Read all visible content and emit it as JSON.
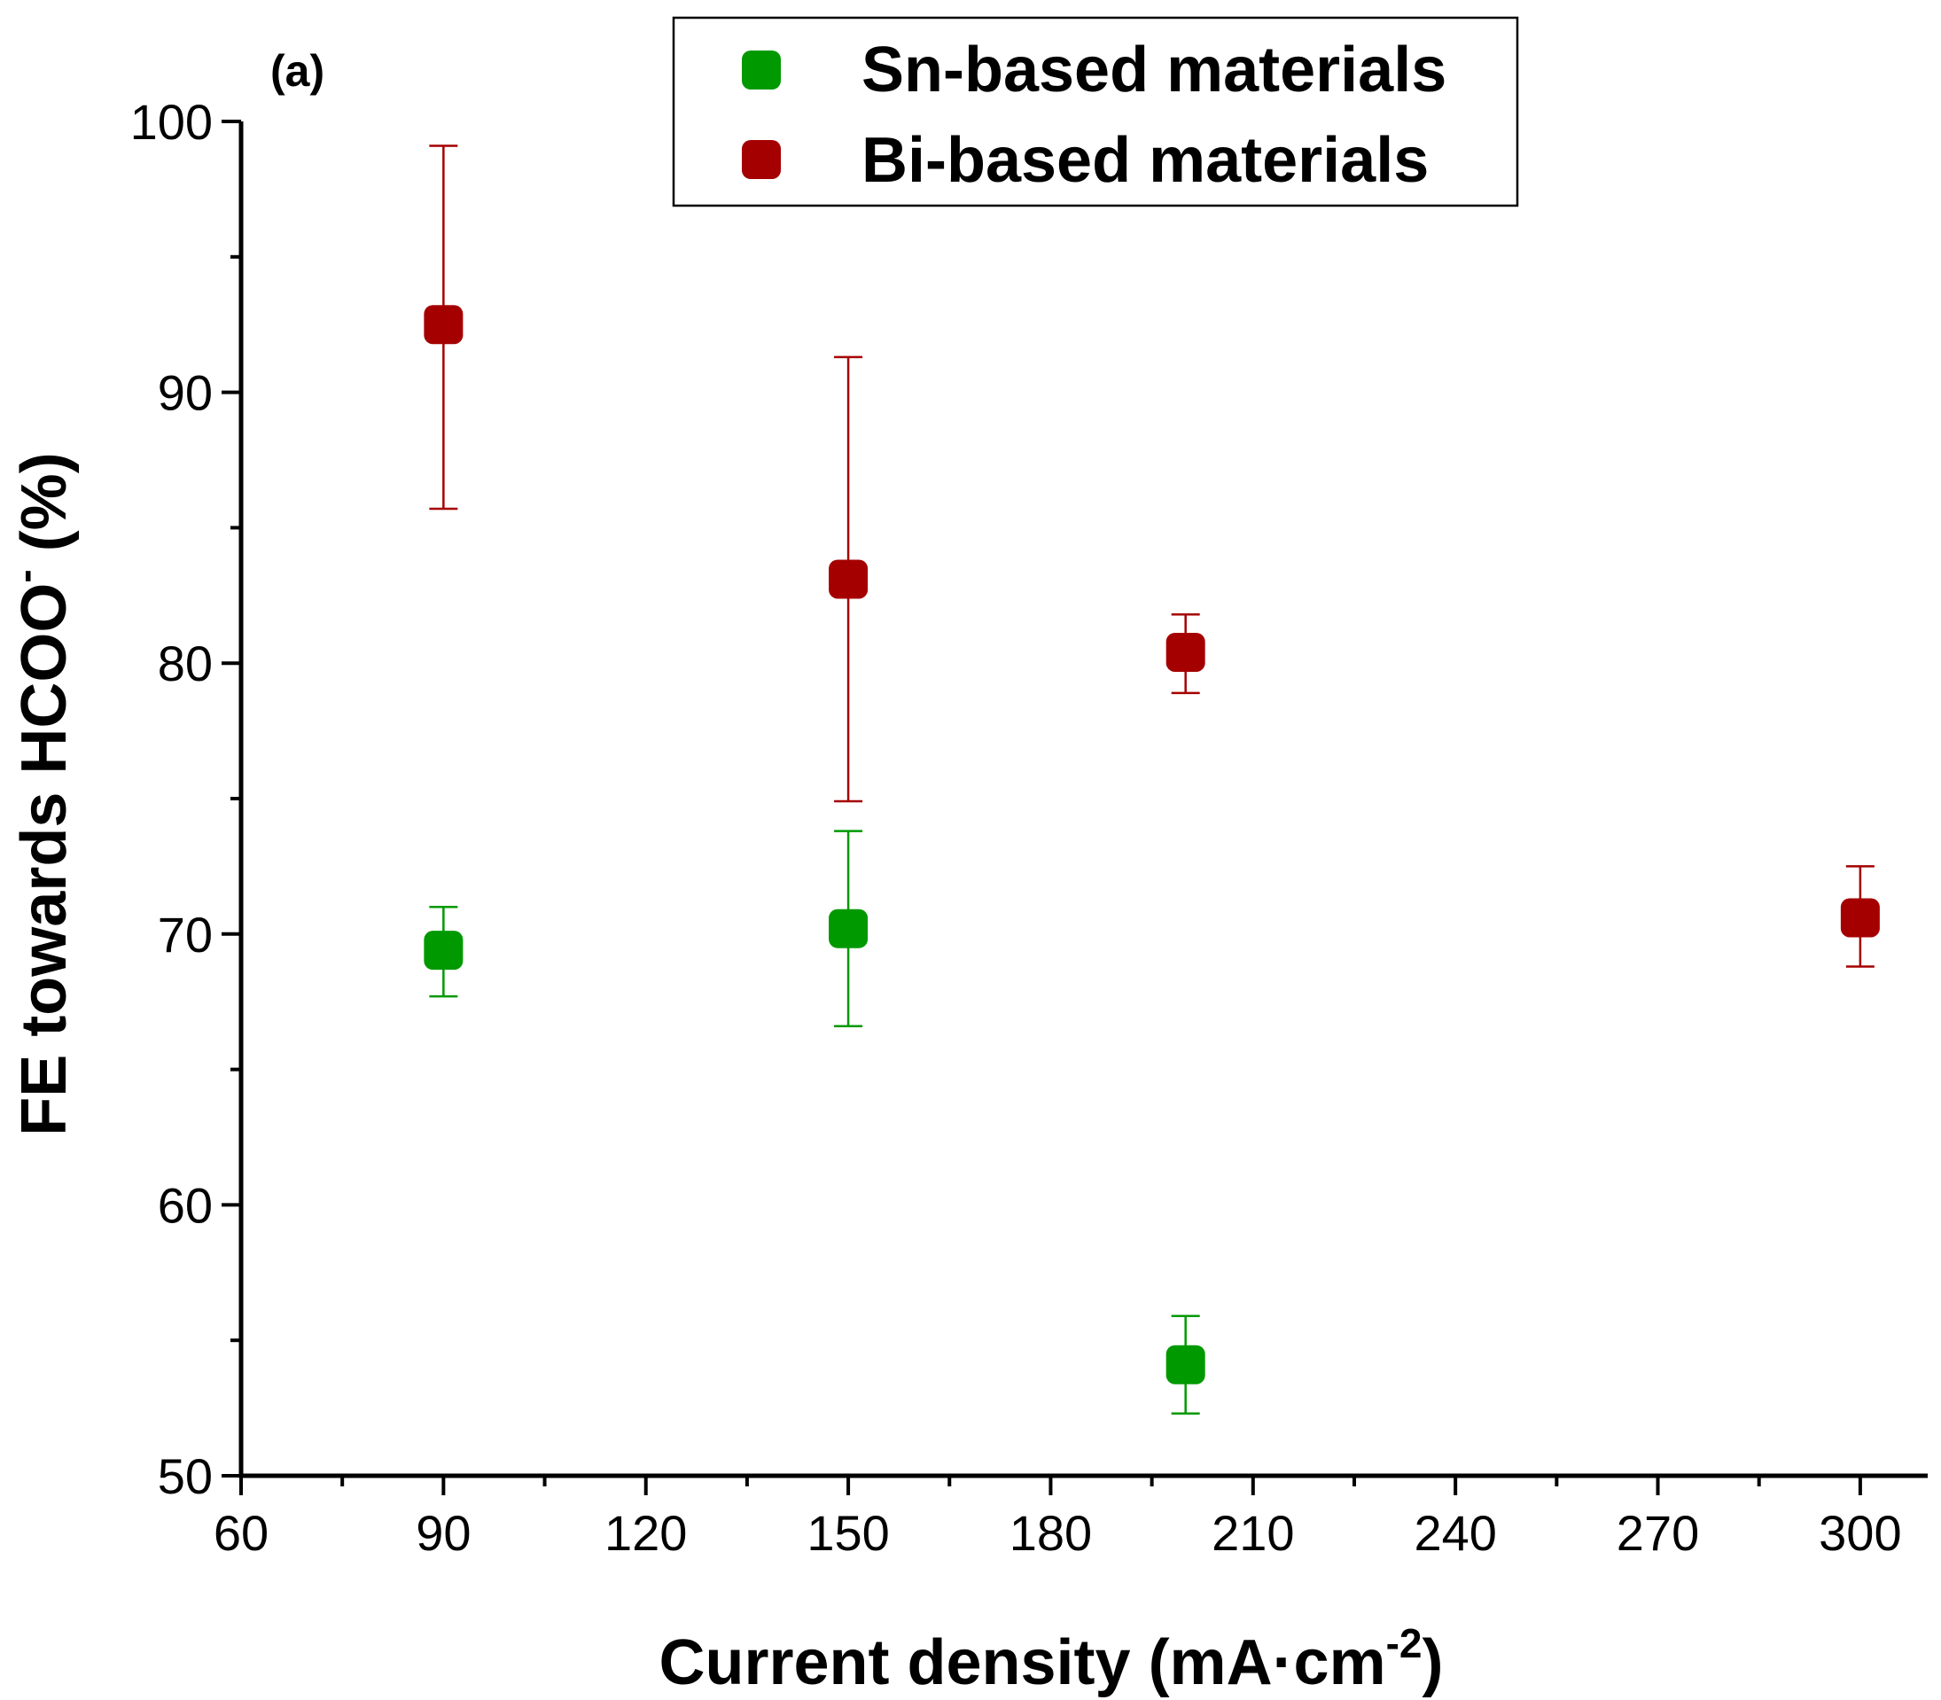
{
  "chart_data": {
    "type": "scatter",
    "panel_label": "(a)",
    "xlabel": "Current density (mA·cm",
    "xlabel_sup": "-2",
    "xlabel_end": ")",
    "ylabel": "FE towards HCOO",
    "ylabel_sup": "-",
    "ylabel_end": " (%)",
    "xlim": [
      60,
      310
    ],
    "ylim": [
      50,
      100
    ],
    "x_ticks": [
      60,
      90,
      120,
      150,
      180,
      210,
      240,
      270,
      300
    ],
    "x_tick_labels": [
      "60",
      "90",
      "120",
      "150",
      "180",
      "210",
      "240",
      "270",
      "300"
    ],
    "x_minor_ticks": [
      75,
      105,
      135,
      165,
      195,
      225,
      255,
      285
    ],
    "y_ticks": [
      50,
      60,
      70,
      80,
      90,
      100
    ],
    "y_tick_labels": [
      "50",
      "60",
      "70",
      "80",
      "90",
      "100"
    ],
    "y_minor_ticks": [
      55,
      65,
      75,
      85,
      95
    ],
    "legend_position": "top-center",
    "series": [
      {
        "name": "Sn-based materials",
        "color": "#009900",
        "points": [
          {
            "x": 90,
            "y": 69.4,
            "err_low": 67.7,
            "err_high": 71.0
          },
          {
            "x": 150,
            "y": 70.2,
            "err_low": 66.6,
            "err_high": 73.8
          },
          {
            "x": 200,
            "y": 54.1,
            "err_low": 52.3,
            "err_high": 55.9
          }
        ]
      },
      {
        "name": "Bi-based materials",
        "color": "#a50000",
        "points": [
          {
            "x": 90,
            "y": 92.5,
            "err_low": 85.7,
            "err_high": 99.1
          },
          {
            "x": 150,
            "y": 83.1,
            "err_low": 74.9,
            "err_high": 91.3
          },
          {
            "x": 200,
            "y": 80.4,
            "err_low": 78.9,
            "err_high": 81.8
          },
          {
            "x": 300,
            "y": 70.6,
            "err_low": 68.8,
            "err_high": 72.5
          }
        ]
      }
    ]
  }
}
